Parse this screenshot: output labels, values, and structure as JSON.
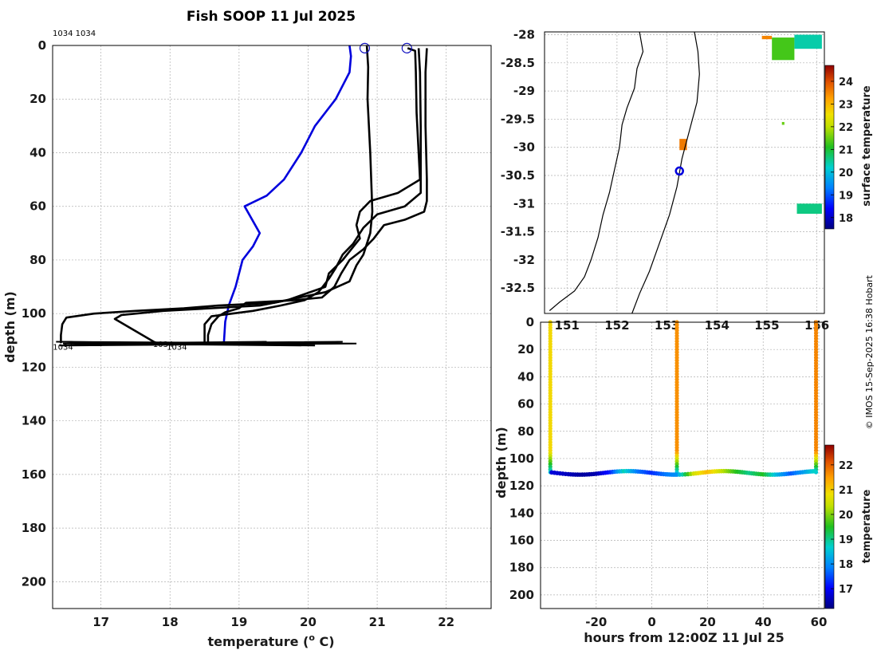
{
  "title": "Fish SOOP 11 Jul 2025",
  "credit": "© IMOS 15-Sep-2025 16:38 Hobart",
  "colors": {
    "profile_black": "#000000",
    "profile_blue": "#0000dd",
    "marker_blue": "#1010c0",
    "grid": "#b0b0b0"
  },
  "chart_data": [
    {
      "type": "line",
      "name": "temperature-profiles",
      "xlabel": "temperature (° C)",
      "xlabel_main": "temperature (",
      "xlabel_sup": "o",
      "xlabel_tail": " C)",
      "ylabel": "depth (m)",
      "xlim": [
        16.3,
        22.65
      ],
      "ylim": [
        0,
        210
      ],
      "xticks": [
        17,
        18,
        19,
        20,
        21,
        22
      ],
      "yticks": [
        0,
        20,
        40,
        60,
        80,
        100,
        120,
        140,
        160,
        180,
        200
      ],
      "annotation_top": "1034 1034",
      "bottom_labels": [
        "1034",
        "1034",
        "1034"
      ],
      "bottom_label_pos": [
        [
          16.45,
          112
        ],
        [
          17.9,
          111
        ],
        [
          18.1,
          112
        ]
      ],
      "surface_markers": [
        [
          20.82,
          1
        ],
        [
          21.43,
          1
        ]
      ],
      "series": [
        {
          "name": "blue-profile",
          "color": "#0000dd",
          "points": [
            [
              20.6,
              0
            ],
            [
              20.62,
              4
            ],
            [
              20.6,
              10
            ],
            [
              20.4,
              20
            ],
            [
              20.1,
              30
            ],
            [
              19.9,
              40
            ],
            [
              19.65,
              50
            ],
            [
              19.4,
              56
            ],
            [
              19.08,
              60
            ],
            [
              19.3,
              70
            ],
            [
              19.2,
              75
            ],
            [
              19.05,
              80
            ],
            [
              18.95,
              90
            ],
            [
              18.85,
              97
            ],
            [
              18.8,
              103
            ],
            [
              18.78,
              111
            ]
          ]
        },
        {
          "name": "black-profile-1",
          "color": "#000000",
          "points": [
            [
              20.85,
              0
            ],
            [
              20.87,
              8
            ],
            [
              20.86,
              20
            ],
            [
              20.9,
              40
            ],
            [
              20.92,
              55
            ],
            [
              20.93,
              62
            ],
            [
              20.9,
              70
            ],
            [
              20.8,
              78
            ],
            [
              20.7,
              82
            ],
            [
              20.6,
              88
            ],
            [
              20.25,
              92
            ],
            [
              19.5,
              96
            ],
            [
              18.7,
              97
            ],
            [
              18.2,
              98
            ],
            [
              17.5,
              99
            ],
            [
              16.9,
              100
            ],
            [
              16.5,
              101.5
            ],
            [
              16.44,
              104
            ],
            [
              16.42,
              108
            ],
            [
              16.42,
              111
            ]
          ]
        },
        {
          "name": "black-profile-2",
          "color": "#000000",
          "points": [
            [
              21.44,
              1
            ],
            [
              21.55,
              2
            ],
            [
              21.56,
              10
            ],
            [
              21.57,
              25
            ],
            [
              21.6,
              40
            ],
            [
              21.62,
              50
            ],
            [
              21.3,
              55
            ],
            [
              20.9,
              58
            ],
            [
              20.75,
              62
            ],
            [
              20.7,
              67
            ],
            [
              20.75,
              72
            ],
            [
              20.5,
              80
            ],
            [
              20.3,
              85
            ],
            [
              20.25,
              90
            ],
            [
              19.7,
              95
            ],
            [
              19.3,
              97
            ],
            [
              18.6,
              98
            ],
            [
              17.9,
              99
            ],
            [
              17.3,
              100.5
            ],
            [
              17.2,
              102
            ],
            [
              17.6,
              108
            ],
            [
              17.8,
              111
            ]
          ]
        },
        {
          "name": "black-profile-3",
          "color": "#000000",
          "points": [
            [
              21.6,
              1
            ],
            [
              21.62,
              10
            ],
            [
              21.63,
              30
            ],
            [
              21.63,
              45
            ],
            [
              21.63,
              55
            ],
            [
              21.4,
              60
            ],
            [
              21.0,
              63
            ],
            [
              20.8,
              68
            ],
            [
              20.65,
              74
            ],
            [
              20.5,
              78
            ],
            [
              20.4,
              83
            ],
            [
              20.3,
              87
            ],
            [
              20.15,
              92
            ],
            [
              19.95,
              95
            ],
            [
              19.6,
              97
            ],
            [
              19.2,
              99
            ],
            [
              18.9,
              100
            ],
            [
              18.6,
              101
            ],
            [
              18.5,
              104
            ],
            [
              18.5,
              108
            ],
            [
              18.5,
              111
            ]
          ]
        },
        {
          "name": "black-profile-4",
          "color": "#000000",
          "points": [
            [
              21.72,
              1
            ],
            [
              21.7,
              10
            ],
            [
              21.7,
              30
            ],
            [
              21.72,
              50
            ],
            [
              21.72,
              58
            ],
            [
              21.68,
              62
            ],
            [
              21.4,
              65
            ],
            [
              21.1,
              67
            ],
            [
              20.95,
              72
            ],
            [
              20.8,
              76
            ],
            [
              20.6,
              80
            ],
            [
              20.48,
              85
            ],
            [
              20.38,
              90
            ],
            [
              20.2,
              94
            ],
            [
              19.8,
              95
            ],
            [
              19.1,
              96
            ],
            [
              19.0,
              98
            ],
            [
              18.8,
              99.5
            ],
            [
              18.7,
              101
            ],
            [
              18.6,
              104
            ],
            [
              18.55,
              108
            ],
            [
              18.55,
              111
            ]
          ]
        }
      ]
    },
    {
      "type": "heatmap",
      "name": "surface-temperature-map",
      "ylim": [
        -32.95,
        -27.95
      ],
      "xlim": [
        150.55,
        156.15
      ],
      "yticks": [
        -28,
        -28.5,
        -29,
        -29.5,
        -30,
        -30.5,
        -31,
        -31.5,
        -32,
        -32.5
      ],
      "ytick_labels": [
        "-28",
        "-28.5",
        "-29",
        "-29.5",
        "-30",
        "-30.5",
        "-31",
        "-31.5",
        "-32",
        "-32.5"
      ],
      "xticks": [
        151,
        152,
        153,
        154,
        155,
        156
      ],
      "xtick_labels": [
        "151",
        "152",
        "153",
        "154",
        "155",
        "156"
      ],
      "colorbar_label": "surface temperature",
      "colorbar_range": [
        17.5,
        24.7
      ],
      "colorbar_ticks": [
        18,
        19,
        20,
        21,
        22,
        23,
        24
      ],
      "vessel_position": [
        153.25,
        -30.42
      ],
      "coastline": [
        [
          152.45,
          -27.95
        ],
        [
          152.52,
          -28.3
        ],
        [
          152.4,
          -28.6
        ],
        [
          152.35,
          -28.95
        ],
        [
          152.2,
          -29.3
        ],
        [
          152.1,
          -29.6
        ],
        [
          152.05,
          -30.0
        ],
        [
          151.95,
          -30.4
        ],
        [
          151.85,
          -30.8
        ],
        [
          151.72,
          -31.2
        ],
        [
          151.62,
          -31.6
        ],
        [
          151.48,
          -32.0
        ],
        [
          151.35,
          -32.3
        ],
        [
          151.15,
          -32.55
        ],
        [
          150.85,
          -32.75
        ],
        [
          150.65,
          -32.9
        ]
      ],
      "shelf_break": [
        [
          153.55,
          -27.95
        ],
        [
          153.62,
          -28.3
        ],
        [
          153.65,
          -28.7
        ],
        [
          153.6,
          -29.2
        ],
        [
          153.45,
          -29.7
        ],
        [
          153.3,
          -30.2
        ],
        [
          153.2,
          -30.7
        ],
        [
          153.05,
          -31.2
        ],
        [
          152.85,
          -31.7
        ],
        [
          152.65,
          -32.2
        ],
        [
          152.45,
          -32.6
        ],
        [
          152.3,
          -32.95
        ]
      ],
      "sst_patches": [
        {
          "lon": [
            154.9,
            155.1
          ],
          "lat": [
            -28.02,
            -28.08
          ],
          "value": 23.5
        },
        {
          "lon": [
            155.1,
            155.55
          ],
          "lat": [
            -28.05,
            -28.45
          ],
          "value": 21.3
        },
        {
          "lon": [
            155.55,
            156.1
          ],
          "lat": [
            -28.0,
            -28.25
          ],
          "value": 20.4
        },
        {
          "lon": [
            153.25,
            153.4
          ],
          "lat": [
            -29.85,
            -30.05
          ],
          "value": 23.6
        },
        {
          "lon": [
            155.3,
            155.35
          ],
          "lat": [
            -29.55,
            -29.6
          ],
          "value": 21.5
        },
        {
          "lon": [
            155.6,
            156.1
          ],
          "lat": [
            -31.0,
            -31.18
          ],
          "value": 20.6
        }
      ]
    },
    {
      "type": "scatter",
      "name": "depth-time-section",
      "xlabel": "hours from 12:00Z 11 Jul 25",
      "ylabel": "depth (m)",
      "xlim": [
        -40,
        62
      ],
      "ylim": [
        0,
        210
      ],
      "xticks": [
        -20,
        0,
        20,
        40,
        60
      ],
      "xtick_labels": [
        "-20",
        "0",
        "20",
        "40",
        "60"
      ],
      "yticks": [
        0,
        20,
        40,
        60,
        80,
        100,
        120,
        140,
        160,
        180,
        200
      ],
      "colorbar_label": "temperature",
      "colorbar_range": [
        16.2,
        22.8
      ],
      "colorbar_ticks": [
        17,
        18,
        19,
        20,
        21,
        22
      ],
      "casts": [
        {
          "hour": -36.5,
          "surface_temp": 20.9,
          "bottom_depth": 110
        },
        {
          "hour": 9,
          "surface_temp": 21.6,
          "bottom_depth": 110
        },
        {
          "hour": 59,
          "surface_temp": 21.7,
          "bottom_depth": 110
        }
      ],
      "bottom_track": [
        {
          "hour": -36,
          "temp": 16.8
        },
        {
          "hour": -30,
          "temp": 16.6
        },
        {
          "hour": -25,
          "temp": 16.4
        },
        {
          "hour": -20,
          "temp": 16.5
        },
        {
          "hour": -15,
          "temp": 17.2
        },
        {
          "hour": -10,
          "temp": 18.8
        },
        {
          "hour": -5,
          "temp": 17.8
        },
        {
          "hour": 0,
          "temp": 17.3
        },
        {
          "hour": 5,
          "temp": 17.8
        },
        {
          "hour": 9,
          "temp": 18.0
        },
        {
          "hour": 15,
          "temp": 20.5
        },
        {
          "hour": 20,
          "temp": 21.2
        },
        {
          "hour": 25,
          "temp": 20.4
        },
        {
          "hour": 30,
          "temp": 19.6
        },
        {
          "hour": 35,
          "temp": 19.0
        },
        {
          "hour": 40,
          "temp": 19.5
        },
        {
          "hour": 45,
          "temp": 18.4
        },
        {
          "hour": 50,
          "temp": 17.6
        },
        {
          "hour": 55,
          "temp": 18.2
        },
        {
          "hour": 59,
          "temp": 18.8
        }
      ]
    }
  ]
}
